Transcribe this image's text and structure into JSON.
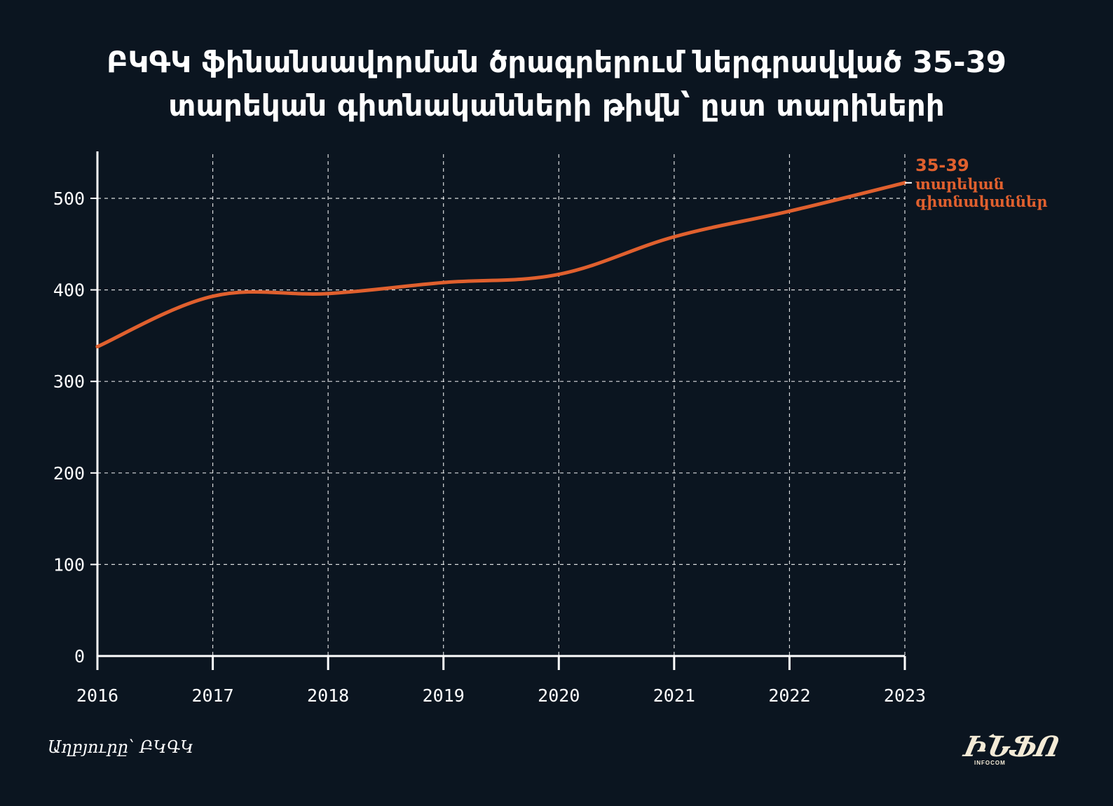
{
  "title": "ԲԿԳԿ ֆինանսավորման ծրագրերում ներգրավված 35-39 տարեկան գիտնականների թիվն՝ ըստ տարիների",
  "source": "Աղբյուրը՝ ԲԿԳԿ",
  "logo": {
    "word": "ԻՆՖՈ",
    "subtitle": "INFOCOM"
  },
  "colors": {
    "background": "#0b1520",
    "line": "#e0602e",
    "axis": "#ffffff",
    "grid": "#ffffff"
  },
  "chart_data": {
    "type": "line",
    "title": "ԲԿԳԿ ֆինանսավորման ծրագրերում ներգրավված 35-39 տարեկան գիտնականների թիվն՝ ըստ տարիների",
    "xlabel": "",
    "ylabel": "",
    "x": [
      2016,
      2017,
      2018,
      2019,
      2020,
      2021,
      2022,
      2023
    ],
    "x_tick_labels": [
      "2016",
      "2017",
      "2018",
      "2019",
      "2020",
      "2021",
      "2022",
      "2023"
    ],
    "y_ticks": [
      0,
      100,
      200,
      300,
      400,
      500
    ],
    "y_tick_labels": [
      "0",
      "100",
      "200",
      "300",
      "400",
      "500"
    ],
    "ylim": [
      0,
      550
    ],
    "grid": true,
    "series": [
      {
        "name": "35-39 տարեկան գիտնականներ",
        "label_lines": [
          "35-39",
          "տարեկան",
          "գիտնականներ"
        ],
        "values": [
          338,
          393,
          396,
          408,
          417,
          458,
          486,
          517
        ]
      }
    ]
  }
}
